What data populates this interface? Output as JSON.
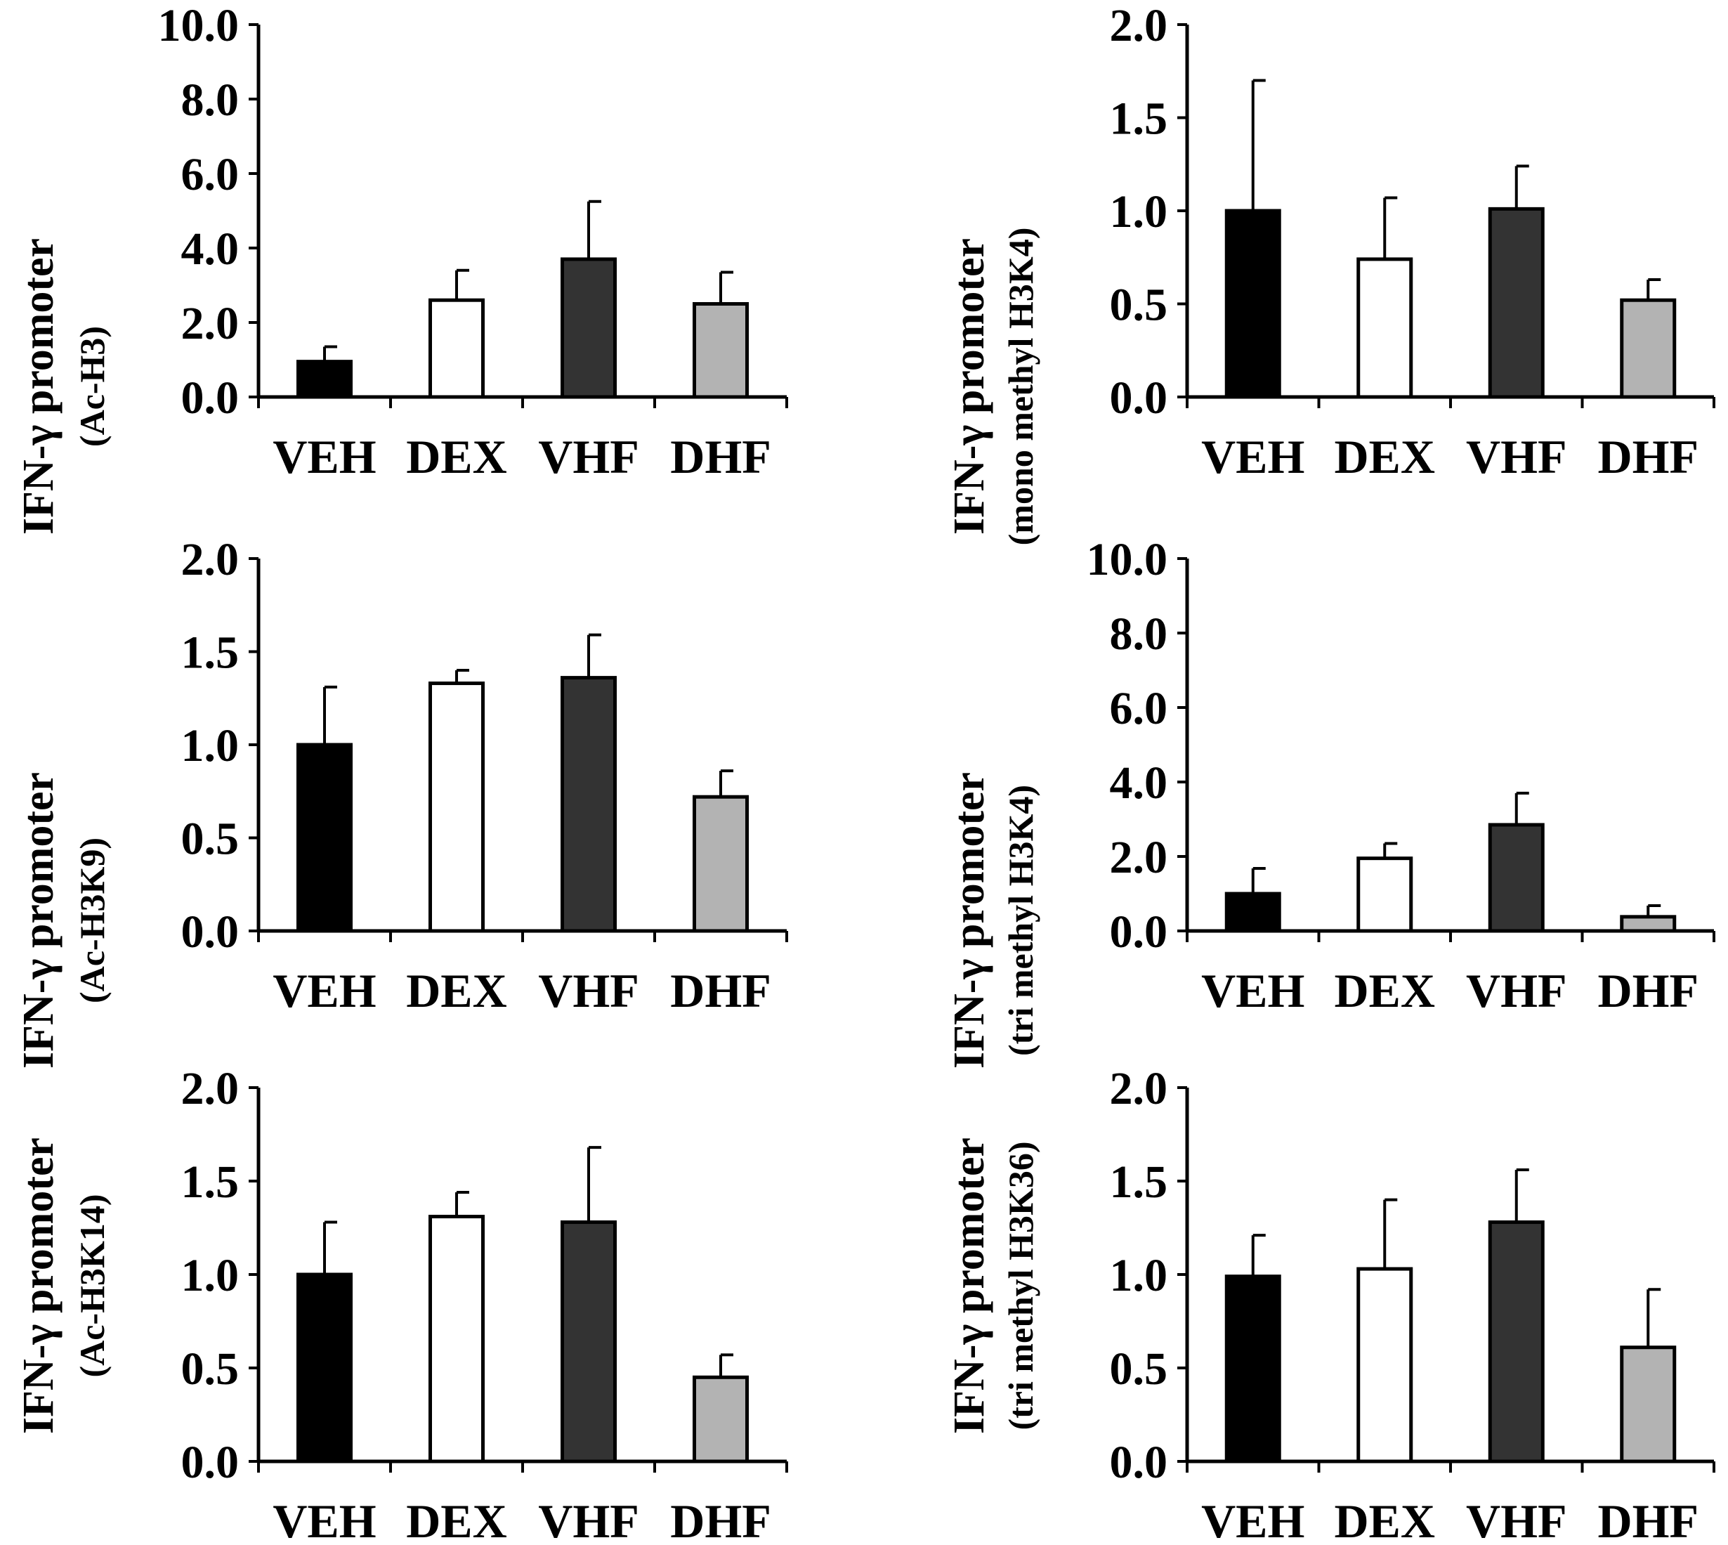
{
  "chart_data": [
    {
      "type": "bar",
      "ylabel": "IFN-γ promoter",
      "ylabel_sub": "(Ac-H3)",
      "categories": [
        "VEH",
        "DEX",
        "VHF",
        "DHF"
      ],
      "values": [
        0.95,
        2.6,
        3.7,
        2.5
      ],
      "errors": [
        0.4,
        0.8,
        1.55,
        0.85
      ],
      "ylim": [
        0,
        10
      ],
      "yticks": [
        "0.0",
        "2.0",
        "4.0",
        "6.0",
        "8.0",
        "10.0"
      ]
    },
    {
      "type": "bar",
      "ylabel": "IFN-γ promoter",
      "ylabel_sub": "(mono methyl H3K4)",
      "categories": [
        "VEH",
        "DEX",
        "VHF",
        "DHF"
      ],
      "values": [
        1.0,
        0.74,
        1.01,
        0.52
      ],
      "errors": [
        0.7,
        0.33,
        0.23,
        0.11
      ],
      "ylim": [
        0,
        2
      ],
      "yticks": [
        "0.0",
        "0.5",
        "1.0",
        "1.5",
        "2.0"
      ]
    },
    {
      "type": "bar",
      "ylabel": "IFN-γ promoter",
      "ylabel_sub": "(Ac-H3K9)",
      "categories": [
        "VEH",
        "DEX",
        "VHF",
        "DHF"
      ],
      "values": [
        1.0,
        1.33,
        1.36,
        0.72
      ],
      "errors": [
        0.31,
        0.07,
        0.23,
        0.14
      ],
      "ylim": [
        0,
        2
      ],
      "yticks": [
        "0.0",
        "0.5",
        "1.0",
        "1.5",
        "2.0"
      ]
    },
    {
      "type": "bar",
      "ylabel": "IFN-γ promoter",
      "ylabel_sub": "(tri methyl H3K4)",
      "categories": [
        "VEH",
        "DEX",
        "VHF",
        "DHF"
      ],
      "values": [
        1.0,
        1.95,
        2.85,
        0.38
      ],
      "errors": [
        0.68,
        0.4,
        0.85,
        0.3
      ],
      "ylim": [
        0,
        10
      ],
      "yticks": [
        "0.0",
        "2.0",
        "4.0",
        "6.0",
        "8.0",
        "10.0"
      ]
    },
    {
      "type": "bar",
      "ylabel": "IFN-γ promoter",
      "ylabel_sub": "(Ac-H3K14)",
      "categories": [
        "VEH",
        "DEX",
        "VHF",
        "DHF"
      ],
      "values": [
        1.0,
        1.31,
        1.28,
        0.45
      ],
      "errors": [
        0.28,
        0.13,
        0.4,
        0.12
      ],
      "ylim": [
        0,
        2
      ],
      "yticks": [
        "0.0",
        "0.5",
        "1.0",
        "1.5",
        "2.0"
      ]
    },
    {
      "type": "bar",
      "ylabel": "IFN-γ promoter",
      "ylabel_sub": "(tri methyl H3K36)",
      "categories": [
        "VEH",
        "DEX",
        "VHF",
        "DHF"
      ],
      "values": [
        0.99,
        1.03,
        1.28,
        0.61
      ],
      "errors": [
        0.22,
        0.37,
        0.28,
        0.31
      ],
      "ylim": [
        0,
        2
      ],
      "yticks": [
        "0.0",
        "0.5",
        "1.0",
        "1.5",
        "2.0"
      ]
    }
  ],
  "colors": {
    "VEH": "#000000",
    "DEX": "#ffffff",
    "VHF": "#333333",
    "DHF": "#b3b3b3",
    "stroke": "#000000"
  }
}
